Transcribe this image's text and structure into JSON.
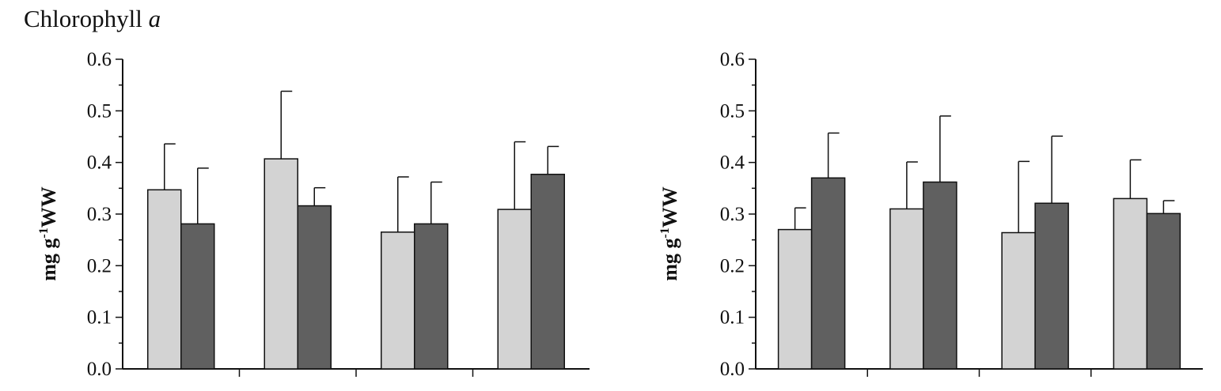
{
  "title": {
    "text": "Chlorophyll ",
    "italic": "a"
  },
  "chart_data": [
    {
      "type": "bar",
      "ylabel": {
        "base": "mg g",
        "sup": "-1",
        "unit": "WW"
      },
      "ylim": [
        0,
        0.6
      ],
      "yticks": [
        "0.0",
        "0.1",
        "0.2",
        "0.3",
        "0.4",
        "0.5",
        "0.6"
      ],
      "series": [
        {
          "color": "#d3d3d3",
          "values": [
            0.347,
            0.407,
            0.265,
            0.309
          ],
          "errors": [
            0.089,
            0.131,
            0.107,
            0.131
          ]
        },
        {
          "color": "#606060",
          "values": [
            0.281,
            0.316,
            0.281,
            0.377
          ],
          "errors": [
            0.108,
            0.035,
            0.081,
            0.054
          ]
        }
      ],
      "groups": 4
    },
    {
      "type": "bar",
      "ylabel": {
        "base": "mg g",
        "sup": "-1",
        "unit": "WW"
      },
      "ylim": [
        0,
        0.6
      ],
      "yticks": [
        "0.0",
        "0.1",
        "0.2",
        "0.3",
        "0.4",
        "0.5",
        "0.6"
      ],
      "series": [
        {
          "color": "#d3d3d3",
          "values": [
            0.27,
            0.31,
            0.264,
            0.33
          ],
          "errors": [
            0.042,
            0.091,
            0.138,
            0.075
          ]
        },
        {
          "color": "#606060",
          "values": [
            0.37,
            0.362,
            0.321,
            0.301
          ],
          "errors": [
            0.087,
            0.128,
            0.13,
            0.025
          ]
        }
      ],
      "groups": 4
    }
  ]
}
